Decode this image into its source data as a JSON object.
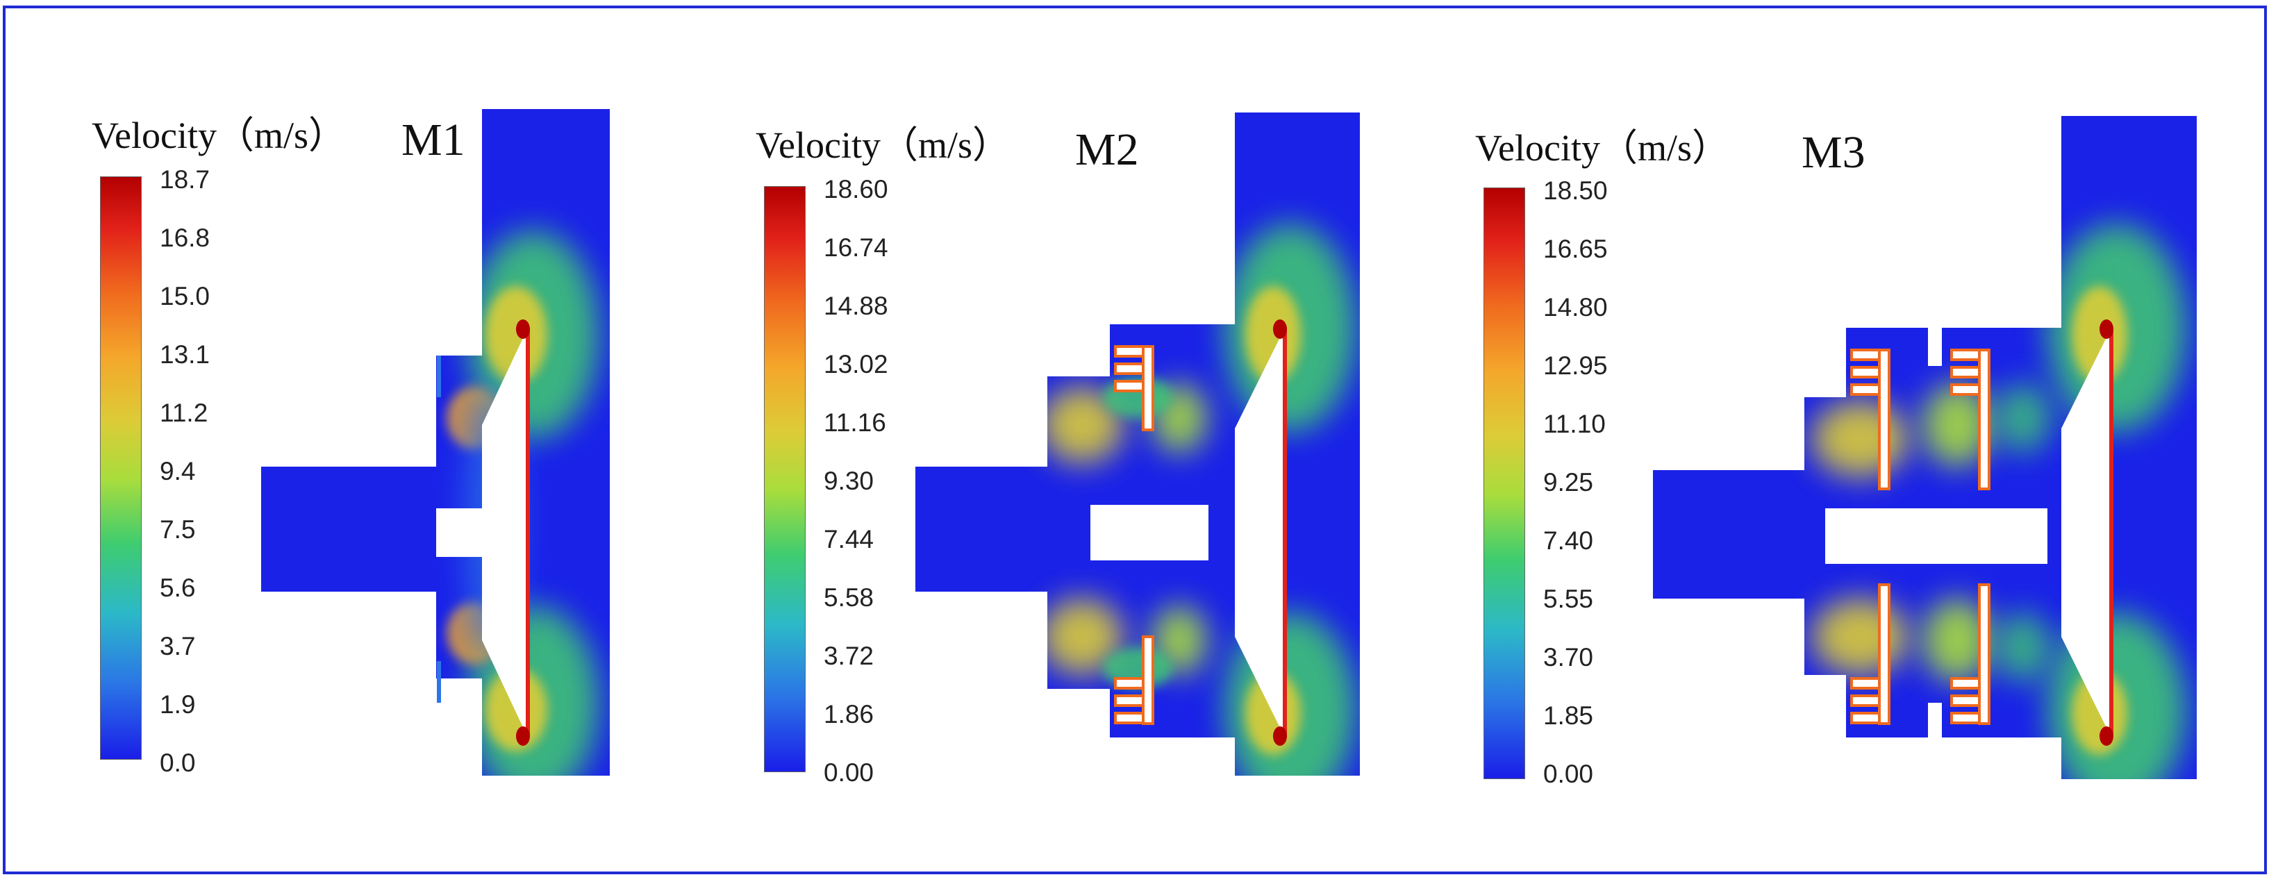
{
  "figure": {
    "panels": [
      {
        "model": "M1",
        "colorbar_title": "Velocity（m/s）",
        "ticks": [
          "18.7",
          "16.8",
          "15.0",
          "13.1",
          "11.2",
          "9.4",
          "7.5",
          "5.6",
          "3.7",
          "1.9",
          "0.0"
        ]
      },
      {
        "model": "M2",
        "colorbar_title": "Velocity（m/s）",
        "ticks": [
          "18.60",
          "16.74",
          "14.88",
          "13.02",
          "11.16",
          "9.30",
          "7.44",
          "5.58",
          "3.72",
          "1.86",
          "0.00"
        ]
      },
      {
        "model": "M3",
        "colorbar_title": "Velocity（m/s）",
        "ticks": [
          "18.50",
          "16.65",
          "14.80",
          "12.95",
          "11.10",
          "9.25",
          "7.40",
          "5.55",
          "3.70",
          "1.85",
          "0.00"
        ]
      }
    ],
    "colormap": [
      "#1a1ee8",
      "#2b76e6",
      "#2cb8c8",
      "#3fcc70",
      "#a8dd3d",
      "#dccc37",
      "#f4a72b",
      "#f06b1e",
      "#e2221a",
      "#b30000"
    ],
    "border_color": "#1f2bd4"
  }
}
